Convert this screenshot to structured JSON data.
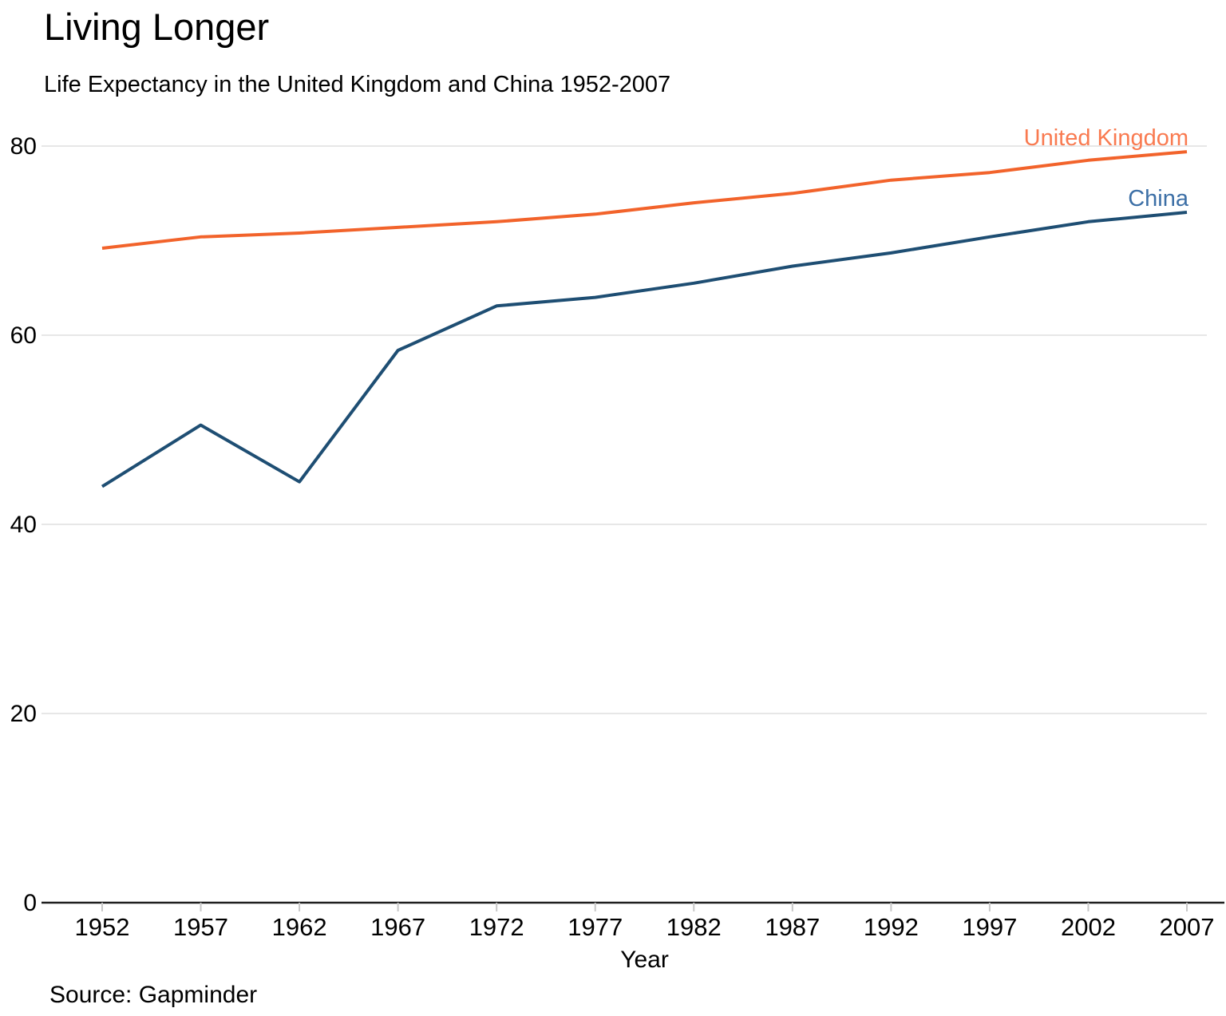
{
  "title": "Living Longer",
  "subtitle": "Life Expectancy in the United Kingdom and China 1952-2007",
  "source": "Source: Gapminder",
  "chart_data": {
    "type": "line",
    "title": "Living Longer",
    "subtitle": "Life Expectancy in the United Kingdom and China 1952-2007",
    "xlabel": "Year",
    "ylabel": "",
    "x": [
      1952,
      1957,
      1962,
      1967,
      1972,
      1977,
      1982,
      1987,
      1992,
      1997,
      2002,
      2007
    ],
    "series": [
      {
        "name": "United Kingdom",
        "values": [
          69.2,
          70.4,
          70.8,
          71.4,
          72.0,
          72.8,
          74.0,
          75.0,
          76.4,
          77.2,
          78.5,
          79.4
        ],
        "line_color": "#F2632B",
        "label_color": "#F97A50"
      },
      {
        "name": "China",
        "values": [
          44.0,
          50.5,
          44.5,
          58.4,
          63.1,
          64.0,
          65.5,
          67.3,
          68.7,
          70.4,
          72.0,
          73.0
        ],
        "line_color": "#1E4E73",
        "label_color": "#3C6FA6"
      }
    ],
    "ylim": [
      0,
      80
    ],
    "yticks": [
      0,
      20,
      40,
      60,
      80
    ],
    "xticks": [
      1952,
      1957,
      1962,
      1967,
      1972,
      1977,
      1982,
      1987,
      1992,
      1997,
      2002,
      2007
    ],
    "grid": "horizontal only, light gray",
    "legend": "direct labels at right ends of lines",
    "colors": {
      "gridline": "#E7E7E7",
      "axis_line": "#1F1F1F",
      "tick_mark": "#C8C8C8",
      "text": "#000000"
    },
    "source": "Source: Gapminder"
  }
}
